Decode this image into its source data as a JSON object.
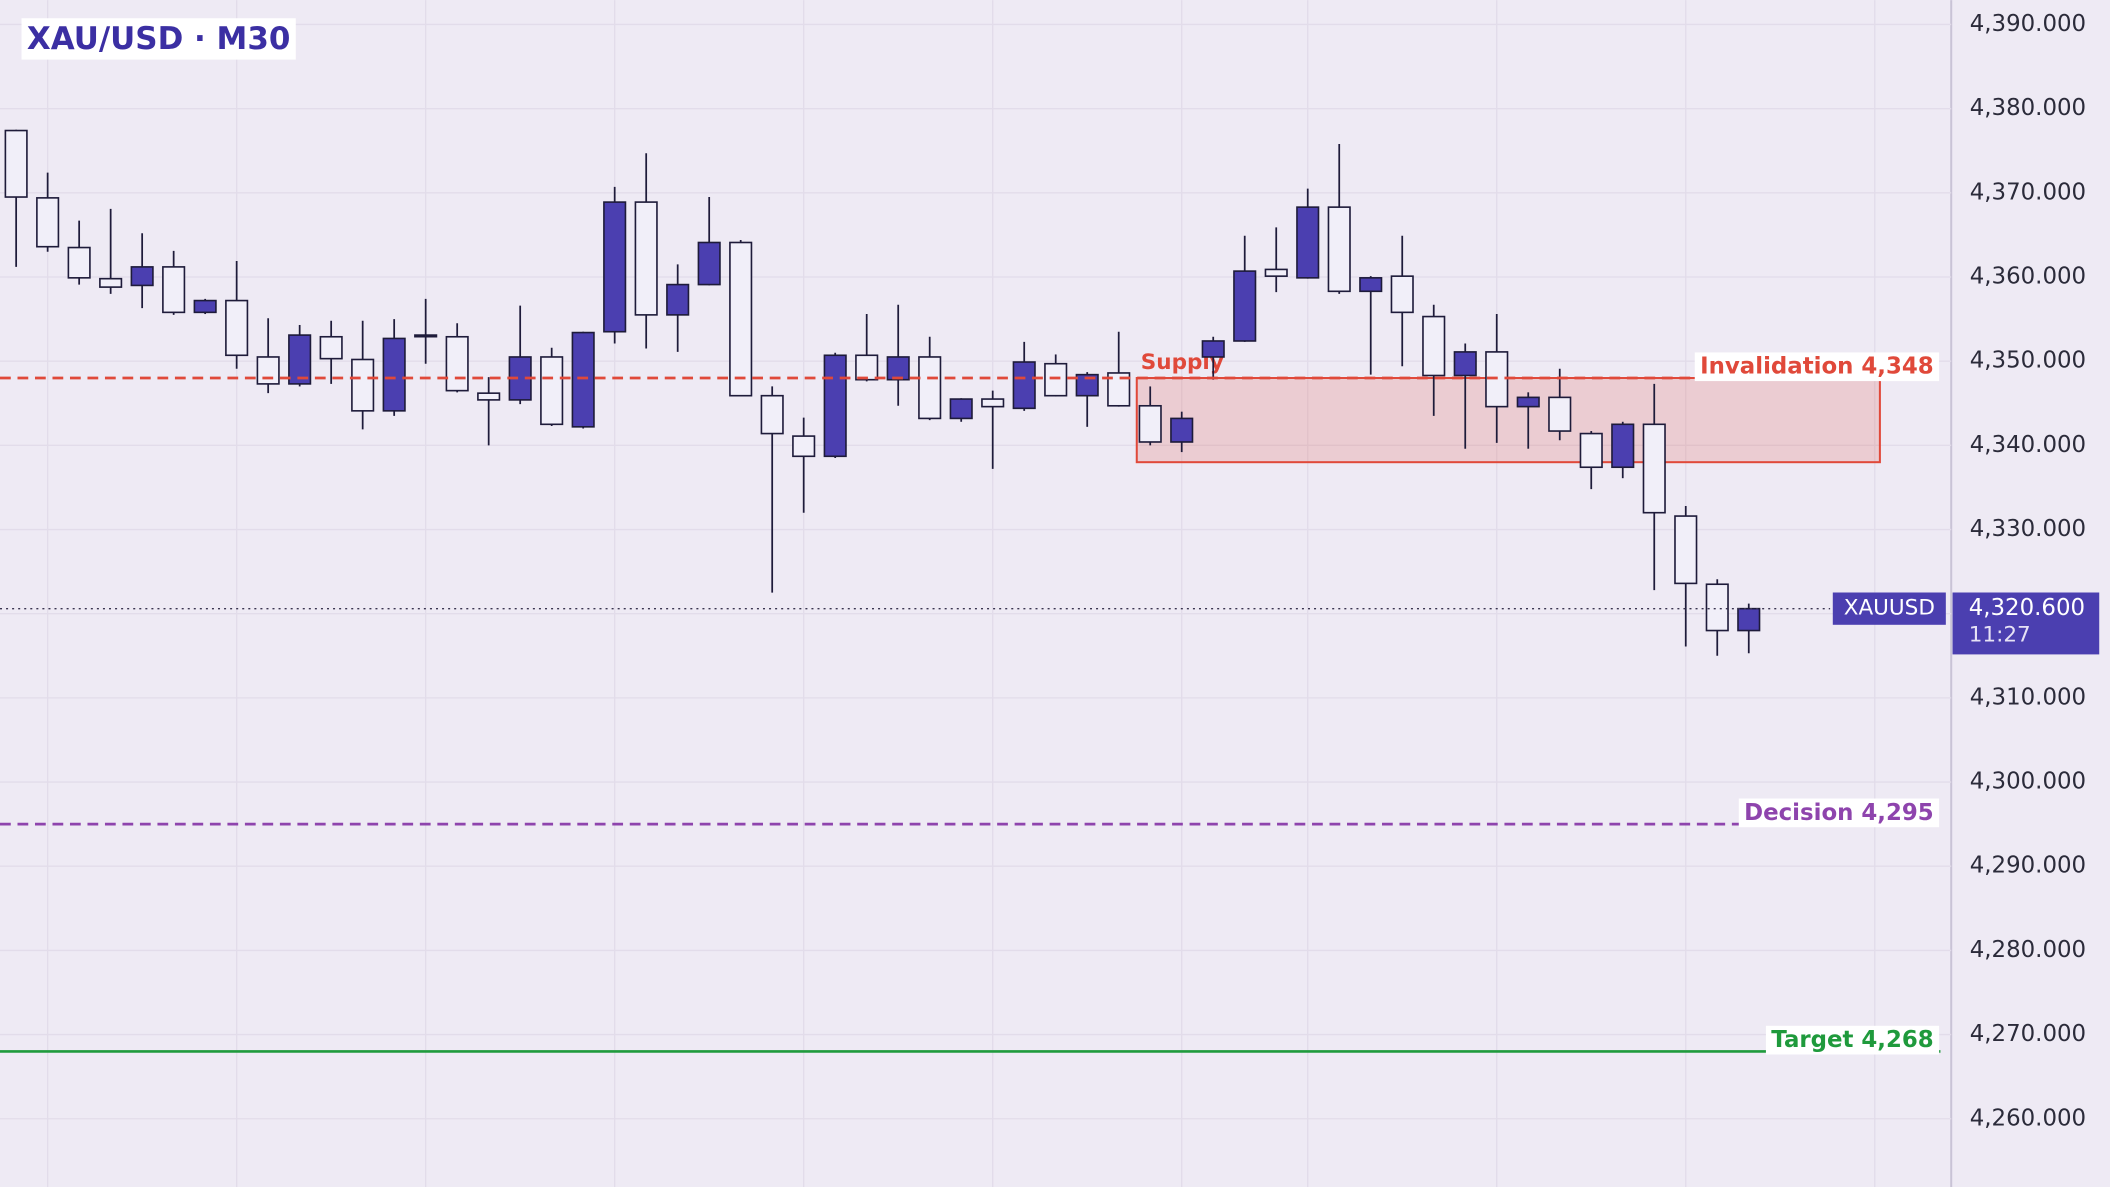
{
  "chart_data": {
    "type": "candlestick",
    "title": "XAU/USD · M30",
    "series": [
      {
        "name": "XAUUSD",
        "up_color": "#4b3fb0",
        "down_color": "#f1eff9",
        "open": [
          4377.4,
          4369.4,
          4363.5,
          4359.8,
          4359.0,
          4361.2,
          4355.8,
          4357.2,
          4350.5,
          4347.3,
          4352.9,
          4350.2,
          4344.1,
          4353.1,
          4352.9,
          4346.2,
          4345.4,
          4350.5,
          4342.2,
          4353.5,
          4368.9,
          4355.5,
          4359.1,
          4364.1,
          4345.9,
          4341.1,
          4338.7,
          4350.7,
          4347.8,
          4350.5,
          4343.2,
          4345.5,
          4344.4,
          4349.7,
          4345.9,
          4348.6,
          4344.7,
          4340.4,
          4350.5,
          4352.4,
          4360.9,
          4359.9,
          4368.3,
          4358.3,
          4360.1,
          4355.3,
          4348.3,
          4351.1,
          4344.6,
          4345.7,
          4341.4,
          4337.4,
          4342.5,
          4331.6,
          4323.5,
          4318.0
        ],
        "high": [
          4377.5,
          4372.4,
          4366.7,
          4368.1,
          4365.2,
          4363.1,
          4357.4,
          4361.9,
          4355.1,
          4354.3,
          4354.8,
          4354.8,
          4355.0,
          4357.4,
          4354.5,
          4348.1,
          4356.6,
          4351.6,
          4353.5,
          4370.7,
          4374.7,
          4361.5,
          4369.5,
          4364.4,
          4347.0,
          4343.3,
          4351.0,
          4355.6,
          4356.7,
          4352.9,
          4345.6,
          4346.5,
          4352.3,
          4350.8,
          4348.7,
          4353.5,
          4347.0,
          4344.0,
          4352.9,
          4364.9,
          4365.9,
          4370.5,
          4375.8,
          4360.1,
          4364.9,
          4356.7,
          4352.1,
          4355.6,
          4346.3,
          4349.1,
          4341.7,
          4342.8,
          4347.3,
          4332.8,
          4324.1,
          4321.2
        ],
        "low": [
          4361.2,
          4363.0,
          4359.1,
          4358.0,
          4356.3,
          4355.5,
          4355.6,
          4349.1,
          4346.2,
          4347.0,
          4347.3,
          4341.9,
          4343.5,
          4349.7,
          4346.3,
          4340.0,
          4344.9,
          4342.3,
          4342.0,
          4352.1,
          4351.5,
          4351.1,
          4359.0,
          4345.8,
          4322.5,
          4332.0,
          4338.5,
          4347.6,
          4344.7,
          4343.0,
          4342.8,
          4337.2,
          4344.1,
          4345.8,
          4342.2,
          4344.6,
          4340.0,
          4339.2,
          4347.8,
          4352.3,
          4358.2,
          4359.8,
          4358.0,
          4348.4,
          4349.4,
          4343.5,
          4339.6,
          4340.3,
          4339.6,
          4340.6,
          4334.8,
          4336.1,
          4322.8,
          4316.1,
          4315.0,
          4315.3
        ],
        "close": [
          4369.5,
          4363.6,
          4359.9,
          4358.8,
          4361.2,
          4355.8,
          4357.2,
          4350.7,
          4347.3,
          4353.1,
          4350.3,
          4344.1,
          4352.7,
          4353.0,
          4346.5,
          4345.4,
          4350.5,
          4342.5,
          4353.4,
          4368.9,
          4355.5,
          4359.1,
          4364.1,
          4345.9,
          4341.4,
          4338.7,
          4350.7,
          4347.8,
          4350.5,
          4343.2,
          4345.5,
          4344.6,
          4349.9,
          4345.9,
          4348.4,
          4344.7,
          4340.4,
          4343.2,
          4352.4,
          4360.7,
          4360.1,
          4368.3,
          4358.3,
          4359.9,
          4355.8,
          4348.3,
          4351.1,
          4344.6,
          4345.7,
          4341.7,
          4337.4,
          4342.5,
          4332.0,
          4323.6,
          4318.0,
          4320.6
        ]
      }
    ],
    "ylim": [
      4251.9,
      4392.9
    ],
    "yticks": [
      {
        "value": 4260,
        "label": "4,260.000"
      },
      {
        "value": 4270,
        "label": "4,270.000"
      },
      {
        "value": 4280,
        "label": "4,280.000"
      },
      {
        "value": 4290,
        "label": "4,290.000"
      },
      {
        "value": 4300,
        "label": "4,300.000"
      },
      {
        "value": 4310,
        "label": "4,310.000"
      },
      {
        "value": 4320,
        "label": "4,320.000"
      },
      {
        "value": 4330,
        "label": "4,330.000"
      },
      {
        "value": 4340,
        "label": "4,340.000"
      },
      {
        "value": 4350,
        "label": "4,350.000"
      },
      {
        "value": 4360,
        "label": "4,360.000"
      },
      {
        "value": 4370,
        "label": "4,370.000"
      },
      {
        "value": 4380,
        "label": "4,380.000"
      },
      {
        "value": 4390,
        "label": "4,390.000"
      }
    ],
    "grid": true,
    "zone": {
      "label": "Supply",
      "low": 4338,
      "high": 4348,
      "color": "#e0493a"
    },
    "levels": [
      {
        "label": "Invalidation 4,348",
        "value": 4348,
        "color": "#e0493a",
        "style": "dashed"
      },
      {
        "label": "Decision 4,295",
        "value": 4295,
        "color": "#8e44ad",
        "style": "dashed"
      },
      {
        "label": "Target 4,268",
        "value": 4268,
        "color": "#1f9a3c",
        "style": "solid"
      }
    ],
    "last_price": {
      "value": 4320.6,
      "label": "4,320.600",
      "countdown": "11:27",
      "color": "#4b3fb0"
    }
  }
}
